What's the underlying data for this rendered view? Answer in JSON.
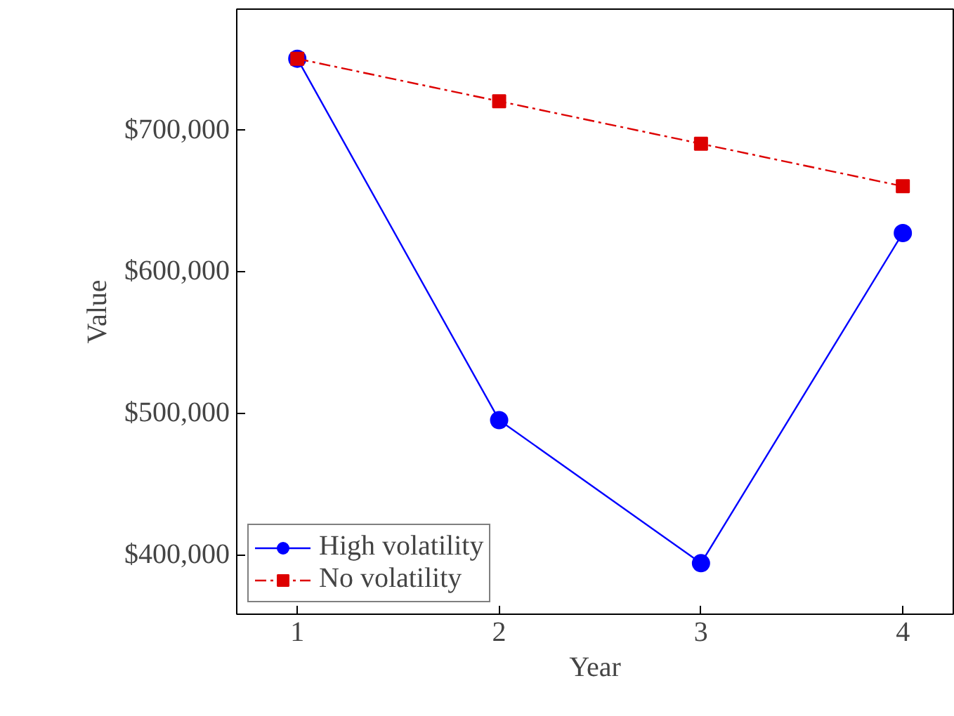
{
  "chart_data": {
    "type": "line",
    "xlabel": "Year",
    "ylabel": "Value",
    "x": [
      1,
      2,
      3,
      4
    ],
    "series": [
      {
        "name": "High volatility",
        "color": "#0000ff",
        "values": [
          750000,
          495000,
          394000,
          627000
        ],
        "marker": "circle",
        "line_style": "solid"
      },
      {
        "name": "No volatility",
        "color": "#dd0000",
        "values": [
          750000,
          720000,
          690000,
          660000
        ],
        "marker": "square",
        "line_style": "dashdot"
      }
    ],
    "xlim": [
      0.7,
      4.25
    ],
    "ylim": [
      358000,
      785000
    ],
    "xticks": [
      1,
      2,
      3,
      4
    ],
    "yticks": [
      {
        "value": 400000,
        "label": "$400,000"
      },
      {
        "value": 500000,
        "label": "$500,000"
      },
      {
        "value": 600000,
        "label": "$600,000"
      },
      {
        "value": 700000,
        "label": "$700,000"
      }
    ],
    "grid": false,
    "legend": "bottom left"
  }
}
